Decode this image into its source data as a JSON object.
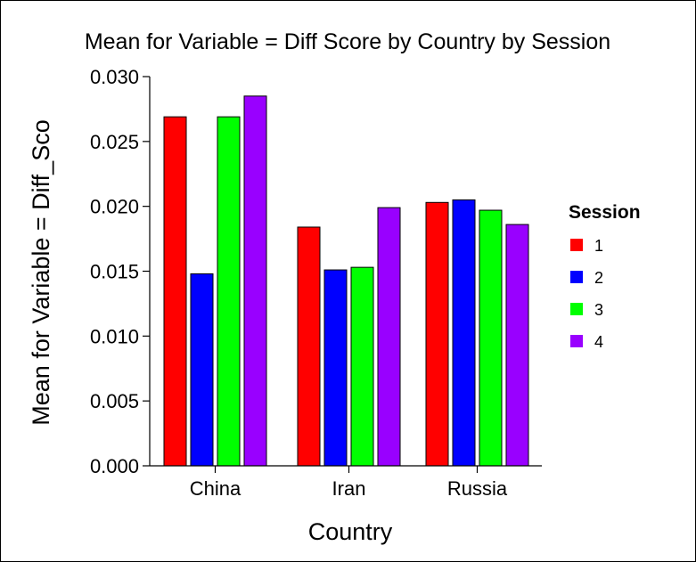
{
  "chart_data": {
    "type": "bar",
    "title": "Mean for Variable = Diff Score by Country by Session",
    "xlabel": "Country",
    "ylabel": "Mean for Variable = Diff_Sco",
    "categories": [
      "China",
      "Iran",
      "Russia"
    ],
    "ylim": [
      0,
      0.03
    ],
    "yticks": [
      "0.000",
      "0.005",
      "0.010",
      "0.015",
      "0.020",
      "0.025",
      "0.030"
    ],
    "grid": false,
    "legend": {
      "title": "Session",
      "position": "right"
    },
    "series": [
      {
        "name": "1",
        "color": "#ff0000",
        "values": [
          0.0269,
          0.0184,
          0.0203
        ]
      },
      {
        "name": "2",
        "color": "#0000ff",
        "values": [
          0.0148,
          0.0151,
          0.0205
        ]
      },
      {
        "name": "3",
        "color": "#00ff00",
        "values": [
          0.0269,
          0.0153,
          0.0197
        ]
      },
      {
        "name": "4",
        "color": "#9900ff",
        "values": [
          0.0285,
          0.0199,
          0.0186
        ]
      }
    ]
  }
}
